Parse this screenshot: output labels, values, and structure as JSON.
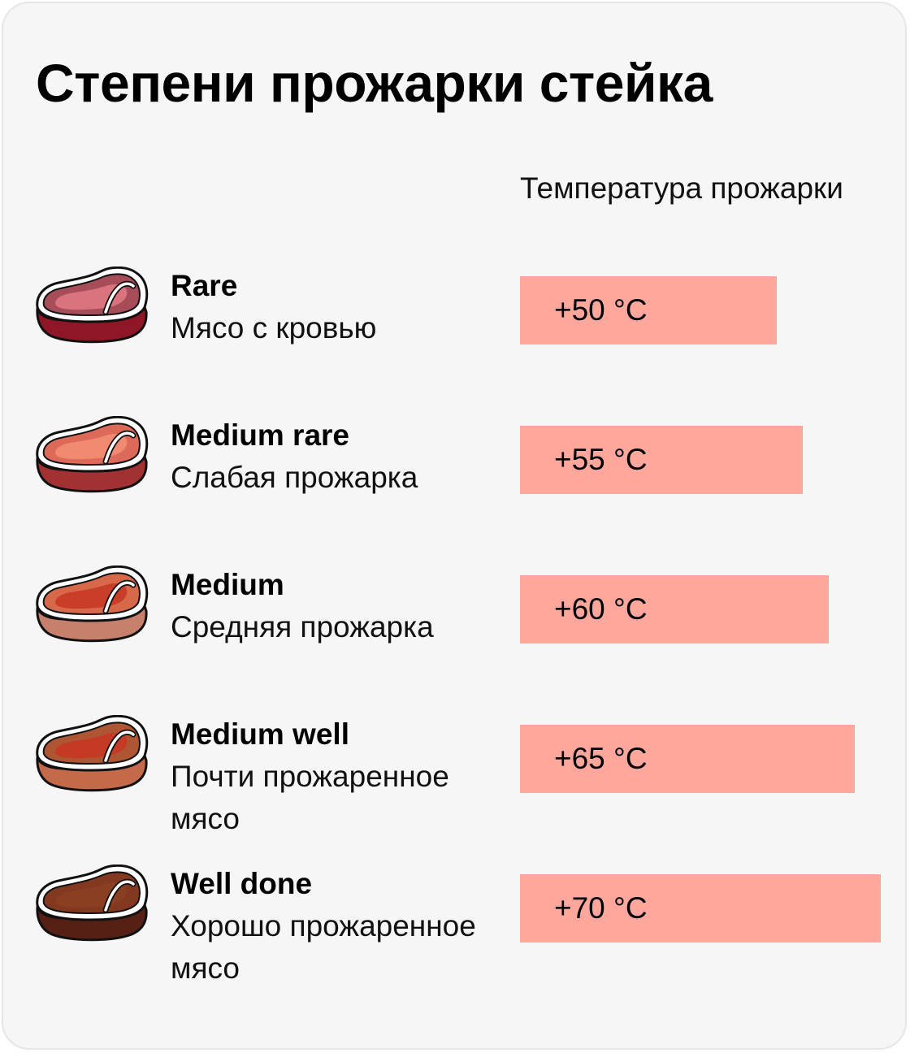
{
  "title": "Степени прожарки стейка",
  "column_header": "Температура прожарки",
  "chart_data": {
    "type": "bar",
    "orientation": "horizontal",
    "title": "Степени прожарки стейка",
    "value_header": "Температура прожарки",
    "unit": "°C",
    "categories": [
      "Rare",
      "Medium rare",
      "Medium",
      "Medium well",
      "Well done"
    ],
    "descriptions": [
      "Мясо с кровью",
      "Слабая прожарка",
      "Средняя прожарка",
      "Почти прожаренное мясо",
      "Хорошо прожаренное мясо"
    ],
    "values": [
      50,
      55,
      60,
      65,
      70
    ],
    "value_labels": [
      "+50 °C",
      "+55 °C",
      "+60 °C",
      "+65 °C",
      "+70 °C"
    ],
    "bar_color": "#ffa79d",
    "grid": false,
    "legend": false
  },
  "steak_colors": [
    {
      "top": "#a74d5a",
      "center": "#d9747e",
      "side": "#8f1624"
    },
    {
      "top": "#dd6a59",
      "center": "#f08a70",
      "side": "#a33032"
    },
    {
      "top": "#d7694a",
      "center": "#c83e29",
      "side": "#c7806b"
    },
    {
      "top": "#ae5533",
      "center": "#c43a25",
      "side": "#c4694a"
    },
    {
      "top": "#82391f",
      "center": "#8a3e22",
      "side": "#572014"
    }
  ],
  "colors": {
    "background": "#f6f6f6",
    "border": "#e6e6e6",
    "bar": "#ffa79d"
  }
}
